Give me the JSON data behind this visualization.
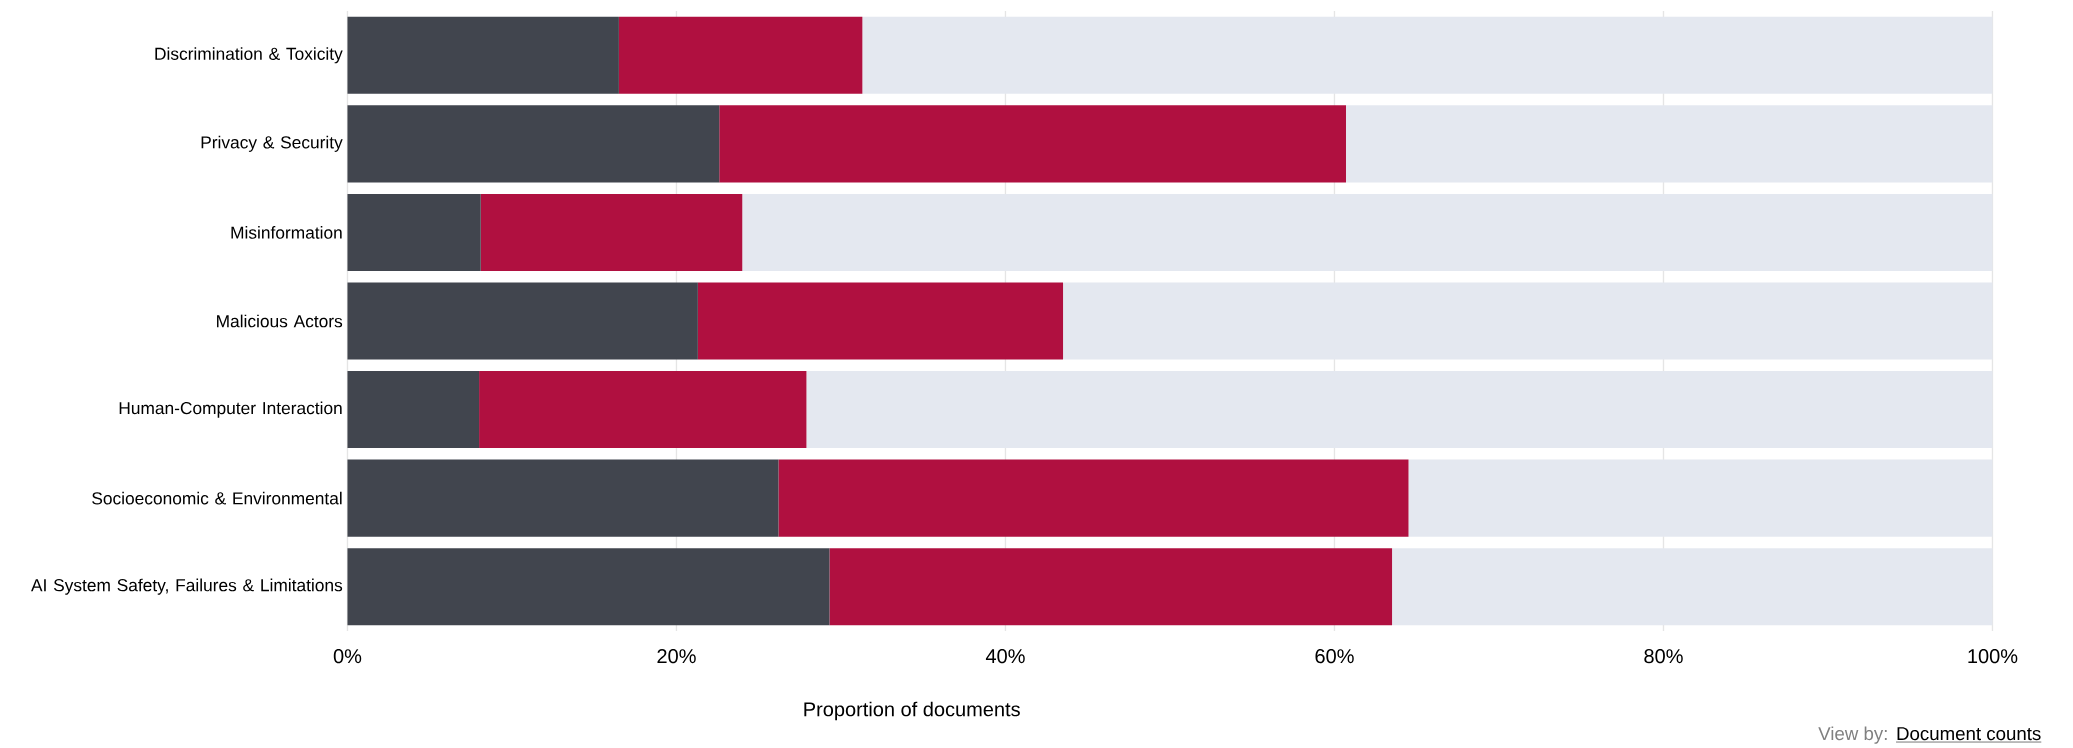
{
  "chart_data": {
    "type": "bar",
    "orientation": "horizontal",
    "stacked": true,
    "categories": [
      "Discrimination & Toxicity",
      "Privacy & Security",
      "Misinformation",
      "Malicious Actors",
      "Human-Computer Interaction",
      "Socioeconomic & Environmental",
      "AI System Safety, Failures & Limitations"
    ],
    "series": [
      {
        "color": "#41454e",
        "values": [
          16.5,
          22.6,
          8.1,
          21.3,
          8.0,
          26.2,
          29.3
        ]
      },
      {
        "color": "#b01040",
        "values": [
          14.8,
          38.1,
          15.9,
          22.2,
          19.9,
          38.3,
          34.2
        ]
      },
      {
        "color": "#e4e8f0",
        "values": [
          68.7,
          39.3,
          76.0,
          56.5,
          72.1,
          35.5,
          36.5
        ]
      }
    ],
    "xlabel": "Proportion of documents",
    "xlim": [
      0,
      100
    ],
    "xticks": [
      {
        "value": 0,
        "label": "0%"
      },
      {
        "value": 20,
        "label": "20%"
      },
      {
        "value": 40,
        "label": "40%"
      },
      {
        "value": 60,
        "label": "60%"
      },
      {
        "value": 80,
        "label": "80%"
      },
      {
        "value": 100,
        "label": "100%"
      }
    ],
    "grid": "x",
    "annotations": [
      "View by:",
      "Document counts"
    ]
  }
}
